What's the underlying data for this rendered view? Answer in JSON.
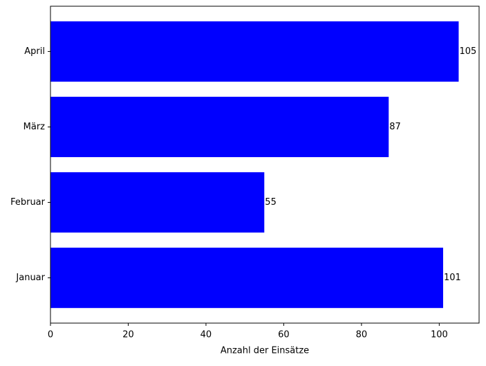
{
  "chart_data": {
    "type": "barh",
    "xlabel": "Anzahl der Einsätze",
    "categories": [
      "Januar",
      "Februar",
      "März",
      "April"
    ],
    "values": [
      101,
      55,
      87,
      105
    ],
    "color": "#0000ff",
    "xlim": [
      0,
      110.25
    ],
    "xticks": [
      0,
      20,
      40,
      60,
      80,
      100
    ]
  }
}
